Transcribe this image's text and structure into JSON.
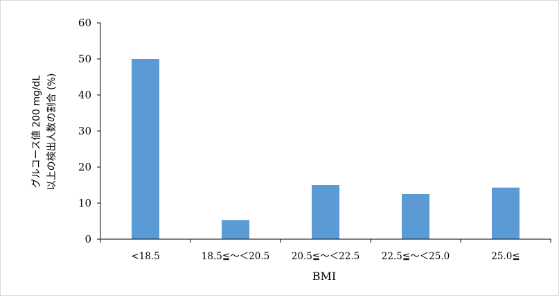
{
  "chart_data": {
    "type": "bar",
    "categories": [
      "<18.5",
      "18.5≦～＜20.5",
      "20.5≦～＜22.5",
      "22.5≦～＜25.0",
      "25.0≦"
    ],
    "values": [
      50.0,
      5.3,
      15.0,
      12.5,
      14.3
    ],
    "title": "",
    "xlabel": "BMI",
    "ylabel_lines": [
      "グルコース値 200 mg/dL",
      "以上の検出人数の割合 (%)"
    ],
    "ylim": [
      0,
      60
    ],
    "yticks": [
      0,
      10,
      20,
      30,
      40,
      50,
      60
    ],
    "grid": false,
    "legend": "none",
    "bar_color": "#5b9bd5",
    "axis_color": "#000000"
  }
}
